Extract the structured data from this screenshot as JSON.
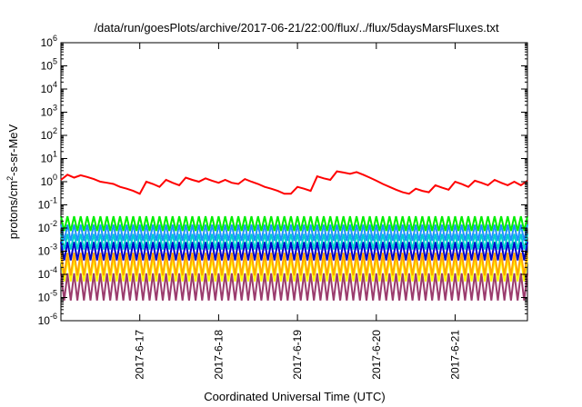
{
  "chart_data": {
    "type": "line",
    "title": "/data/run/goesPlots/archive/2017-06-21/22:00/flux/../flux/5daysMarsFluxes.txt",
    "xlabel": "Coordinated Universal Time (UTC)",
    "ylabel": {
      "prefix": "protons/cm",
      "sup": "2",
      "suffix": "-s-sr-MeV"
    },
    "yscale": "log",
    "ylim": [
      1e-06,
      1000000.0
    ],
    "y_ticks": [
      {
        "value": 1e-06,
        "base": "10",
        "exp": "-6"
      },
      {
        "value": 1e-05,
        "base": "10",
        "exp": "-5"
      },
      {
        "value": 0.0001,
        "base": "10",
        "exp": "-4"
      },
      {
        "value": 0.001,
        "base": "10",
        "exp": "-3"
      },
      {
        "value": 0.01,
        "base": "10",
        "exp": "-2"
      },
      {
        "value": 0.1,
        "base": "10",
        "exp": "-1"
      },
      {
        "value": 1,
        "base": "10",
        "exp": "0"
      },
      {
        "value": 10,
        "base": "10",
        "exp": "1"
      },
      {
        "value": 100,
        "base": "10",
        "exp": "2"
      },
      {
        "value": 1000,
        "base": "10",
        "exp": "3"
      },
      {
        "value": 10000,
        "base": "10",
        "exp": "4"
      },
      {
        "value": 100000,
        "base": "10",
        "exp": "5"
      },
      {
        "value": 1000000,
        "base": "10",
        "exp": "6"
      }
    ],
    "xlim": [
      "2017-06-16 00:00",
      "2017-06-21 22:00"
    ],
    "x_ticks": [
      "2017-6-17",
      "2017-6-18",
      "2017-6-19",
      "2017-6-20",
      "2017-6-21"
    ],
    "x_tick_dates": [
      "2017-06-17",
      "2017-06-18",
      "2017-06-19",
      "2017-06-20",
      "2017-06-21"
    ],
    "grid": false,
    "legend": "none",
    "series": [
      {
        "color": "#ff0000",
        "points": [
          [
            "2017-06-16 00:00",
            1.2
          ],
          [
            "2017-06-16 02:00",
            2.0
          ],
          [
            "2017-06-16 04:00",
            1.5
          ],
          [
            "2017-06-16 06:00",
            1.9
          ],
          [
            "2017-06-16 08:00",
            1.6
          ],
          [
            "2017-06-16 10:00",
            1.3
          ],
          [
            "2017-06-16 12:00",
            1.0
          ],
          [
            "2017-06-16 14:00",
            0.9
          ],
          [
            "2017-06-16 16:00",
            0.8
          ],
          [
            "2017-06-16 18:00",
            0.6
          ],
          [
            "2017-06-16 20:00",
            0.5
          ],
          [
            "2017-06-16 22:00",
            0.4
          ],
          [
            "2017-06-17 00:00",
            0.3
          ],
          [
            "2017-06-17 02:00",
            1.0
          ],
          [
            "2017-06-17 04:00",
            0.8
          ],
          [
            "2017-06-17 06:00",
            0.6
          ],
          [
            "2017-06-17 08:00",
            1.2
          ],
          [
            "2017-06-17 10:00",
            0.9
          ],
          [
            "2017-06-17 12:00",
            0.7
          ],
          [
            "2017-06-17 14:00",
            1.5
          ],
          [
            "2017-06-17 16:00",
            1.2
          ],
          [
            "2017-06-17 18:00",
            1.0
          ],
          [
            "2017-06-17 20:00",
            1.4
          ],
          [
            "2017-06-17 22:00",
            1.1
          ],
          [
            "2017-06-18 00:00",
            0.9
          ],
          [
            "2017-06-18 02:00",
            1.2
          ],
          [
            "2017-06-18 04:00",
            0.9
          ],
          [
            "2017-06-18 06:00",
            0.8
          ],
          [
            "2017-06-18 08:00",
            1.3
          ],
          [
            "2017-06-18 10:00",
            1.0
          ],
          [
            "2017-06-18 12:00",
            0.8
          ],
          [
            "2017-06-18 14:00",
            0.6
          ],
          [
            "2017-06-18 16:00",
            0.5
          ],
          [
            "2017-06-18 18:00",
            0.4
          ],
          [
            "2017-06-18 20:00",
            0.3
          ],
          [
            "2017-06-18 22:00",
            0.3
          ],
          [
            "2017-06-19 00:00",
            0.6
          ],
          [
            "2017-06-19 02:00",
            0.5
          ],
          [
            "2017-06-19 04:00",
            0.4
          ],
          [
            "2017-06-19 06:00",
            1.7
          ],
          [
            "2017-06-19 08:00",
            1.4
          ],
          [
            "2017-06-19 10:00",
            1.2
          ],
          [
            "2017-06-19 12:00",
            2.8
          ],
          [
            "2017-06-19 14:00",
            2.5
          ],
          [
            "2017-06-19 16:00",
            2.2
          ],
          [
            "2017-06-19 18:00",
            2.6
          ],
          [
            "2017-06-19 20:00",
            2.0
          ],
          [
            "2017-06-19 22:00",
            1.5
          ],
          [
            "2017-06-20 00:00",
            1.1
          ],
          [
            "2017-06-20 02:00",
            0.8
          ],
          [
            "2017-06-20 04:00",
            0.6
          ],
          [
            "2017-06-20 06:00",
            0.45
          ],
          [
            "2017-06-20 08:00",
            0.35
          ],
          [
            "2017-06-20 10:00",
            0.3
          ],
          [
            "2017-06-20 12:00",
            0.5
          ],
          [
            "2017-06-20 14:00",
            0.4
          ],
          [
            "2017-06-20 16:00",
            0.35
          ],
          [
            "2017-06-20 18:00",
            0.7
          ],
          [
            "2017-06-20 20:00",
            0.55
          ],
          [
            "2017-06-20 22:00",
            0.45
          ],
          [
            "2017-06-21 00:00",
            1.0
          ],
          [
            "2017-06-21 02:00",
            0.8
          ],
          [
            "2017-06-21 04:00",
            0.6
          ],
          [
            "2017-06-21 06:00",
            1.1
          ],
          [
            "2017-06-21 08:00",
            0.9
          ],
          [
            "2017-06-21 10:00",
            0.7
          ],
          [
            "2017-06-21 12:00",
            1.2
          ],
          [
            "2017-06-21 14:00",
            0.9
          ],
          [
            "2017-06-21 16:00",
            0.7
          ],
          [
            "2017-06-21 18:00",
            1.0
          ],
          [
            "2017-06-21 20:00",
            0.7
          ],
          [
            "2017-06-21 22:00",
            1.1
          ]
        ]
      },
      {
        "color": "#00ee00",
        "low": 0.0075,
        "high": 0.032,
        "period_hours": 2
      },
      {
        "color": "#1e90ff",
        "low": 0.0028,
        "high": 0.014,
        "period_hours": 2
      },
      {
        "color": "#00cdcd",
        "low": 0.0012,
        "high": 0.0055,
        "period_hours": 2
      },
      {
        "color": "#0000cd",
        "low": 0.0004,
        "high": 0.0025,
        "period_hours": 2
      },
      {
        "color": "#ffa500",
        "low": 9e-05,
        "high": 0.00085,
        "period_hours": 2
      },
      {
        "color": "#ffff00",
        "low": 5e-05,
        "high": 0.0005,
        "period_hours": 2
      },
      {
        "color": "#9b3c6e",
        "low": 7.5e-06,
        "high": 0.00011,
        "period_hours": 2
      }
    ]
  }
}
